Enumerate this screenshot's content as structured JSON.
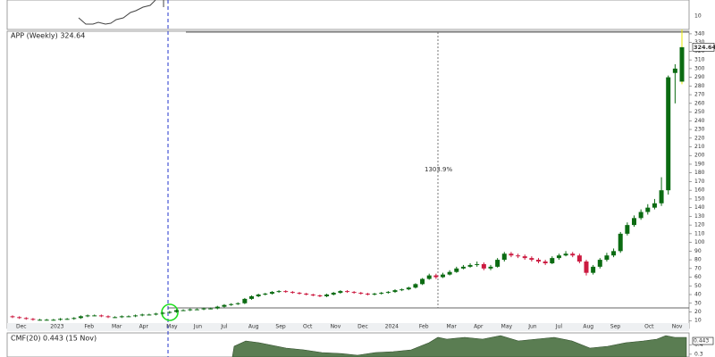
{
  "chart_data": {
    "type": "candlestick",
    "title": "APP (Weekly) 324.64",
    "categories": [
      "Dec",
      null,
      null,
      null,
      null,
      "2023",
      null,
      null,
      null,
      null,
      "Feb",
      null,
      null,
      null,
      "Mar",
      null,
      null,
      null,
      "Apr",
      null,
      null,
      null,
      "May",
      null,
      null,
      null,
      "Jun",
      null,
      null,
      null,
      "Jul",
      null,
      null,
      null,
      "Aug",
      null,
      null,
      null,
      "Sep",
      null,
      null,
      null,
      "Oct",
      null,
      null,
      null,
      "Nov",
      null,
      null,
      null,
      "Dec",
      null,
      null,
      null,
      "2024",
      null,
      null,
      null,
      null,
      "Feb",
      null,
      null,
      null,
      "Mar",
      null,
      null,
      null,
      "Apr",
      null,
      null,
      null,
      "May",
      null,
      null,
      null,
      "Jun",
      null,
      null,
      null,
      "Jul",
      null,
      null,
      null,
      "Aug",
      null,
      null,
      null,
      "Sep",
      null,
      null,
      null,
      null,
      "Oct",
      null,
      null,
      null,
      "Nov",
      null,
      null
    ],
    "open": [
      15,
      14,
      13,
      12,
      11,
      11,
      11,
      11,
      12,
      12,
      13,
      15,
      16,
      16,
      15,
      14,
      14,
      15,
      15,
      16,
      17,
      17,
      18,
      19,
      20,
      22,
      22,
      23,
      23,
      24,
      24,
      26,
      28,
      29,
      30,
      35,
      38,
      40,
      41,
      43,
      44,
      43,
      42,
      41,
      40,
      39,
      38,
      40,
      42,
      44,
      43,
      42,
      41,
      40,
      41,
      42,
      43,
      45,
      46,
      48,
      52,
      58,
      62,
      60,
      63,
      66,
      70,
      72,
      74,
      75,
      70,
      72,
      80,
      87,
      85,
      84,
      82,
      80,
      78,
      76,
      82,
      85,
      87,
      85,
      78,
      65,
      72,
      80,
      85,
      90,
      110,
      120,
      128,
      135,
      140,
      145,
      160,
      295,
      285
    ],
    "high": [
      16,
      15,
      14,
      13,
      12,
      12,
      12,
      13,
      13,
      14,
      16,
      17,
      17,
      17,
      16,
      15,
      16,
      16,
      17,
      18,
      18,
      19,
      20,
      21,
      23,
      23,
      24,
      24,
      25,
      25,
      27,
      29,
      30,
      31,
      36,
      39,
      41,
      42,
      44,
      45,
      45,
      44,
      43,
      42,
      41,
      40,
      41,
      43,
      45,
      45,
      44,
      43,
      42,
      42,
      43,
      44,
      46,
      47,
      49,
      53,
      59,
      64,
      64,
      65,
      68,
      72,
      74,
      76,
      78,
      77,
      74,
      82,
      89,
      89,
      87,
      86,
      84,
      82,
      80,
      84,
      87,
      90,
      89,
      87,
      80,
      74,
      82,
      88,
      93,
      112,
      123,
      131,
      138,
      144,
      150,
      175,
      292,
      305,
      345
    ],
    "low": [
      13,
      12,
      11,
      10,
      10,
      10,
      10,
      10,
      11,
      11,
      12,
      14,
      15,
      14,
      13,
      13,
      13,
      14,
      14,
      15,
      16,
      16,
      17,
      18,
      19,
      21,
      21,
      22,
      22,
      23,
      23,
      25,
      27,
      28,
      29,
      34,
      37,
      39,
      40,
      42,
      42,
      41,
      40,
      39,
      38,
      37,
      37,
      39,
      41,
      42,
      41,
      40,
      39,
      39,
      40,
      41,
      42,
      44,
      45,
      47,
      51,
      57,
      58,
      59,
      62,
      65,
      69,
      71,
      72,
      68,
      68,
      71,
      78,
      83,
      82,
      80,
      78,
      76,
      74,
      75,
      80,
      84,
      83,
      76,
      62,
      63,
      70,
      78,
      83,
      88,
      108,
      118,
      126,
      132,
      138,
      142,
      155,
      260,
      282
    ],
    "close": [
      14,
      13,
      12,
      11,
      11,
      11,
      11,
      12,
      12,
      13,
      15,
      16,
      16,
      15,
      14,
      14,
      15,
      15,
      16,
      17,
      17,
      18,
      19,
      20,
      22,
      22,
      23,
      23,
      24,
      24,
      26,
      28,
      29,
      30,
      35,
      38,
      40,
      41,
      43,
      44,
      43,
      42,
      41,
      40,
      39,
      38,
      40,
      42,
      44,
      43,
      42,
      41,
      40,
      41,
      42,
      43,
      45,
      46,
      48,
      52,
      58,
      62,
      60,
      63,
      66,
      70,
      72,
      74,
      75,
      70,
      72,
      80,
      87,
      85,
      84,
      82,
      80,
      78,
      76,
      82,
      85,
      87,
      85,
      78,
      65,
      72,
      80,
      85,
      90,
      110,
      120,
      128,
      135,
      140,
      145,
      160,
      290,
      300,
      324.64
    ],
    "up_color": "#0b6b12",
    "down_color": "#cc1a40",
    "highlight_color": "#e8e800",
    "ylim": [
      1,
      343
    ],
    "yticks": [
      10,
      20,
      30,
      40,
      50,
      60,
      70,
      80,
      90,
      100,
      110,
      120,
      130,
      140,
      150,
      160,
      170,
      180,
      190,
      200,
      210,
      220,
      230,
      240,
      250,
      260,
      270,
      280,
      290,
      300,
      310,
      320,
      330,
      340
    ],
    "annotation": "1303.9%",
    "top_panel": {
      "yticks": [
        10
      ]
    },
    "cmf": {
      "title": "CMF(20) 0.443 (15 Nov)",
      "last": 0.443,
      "ylim": [
        0.27,
        0.53
      ],
      "yticks": [
        0.4,
        0.3
      ],
      "color": "#5a7d52"
    }
  }
}
